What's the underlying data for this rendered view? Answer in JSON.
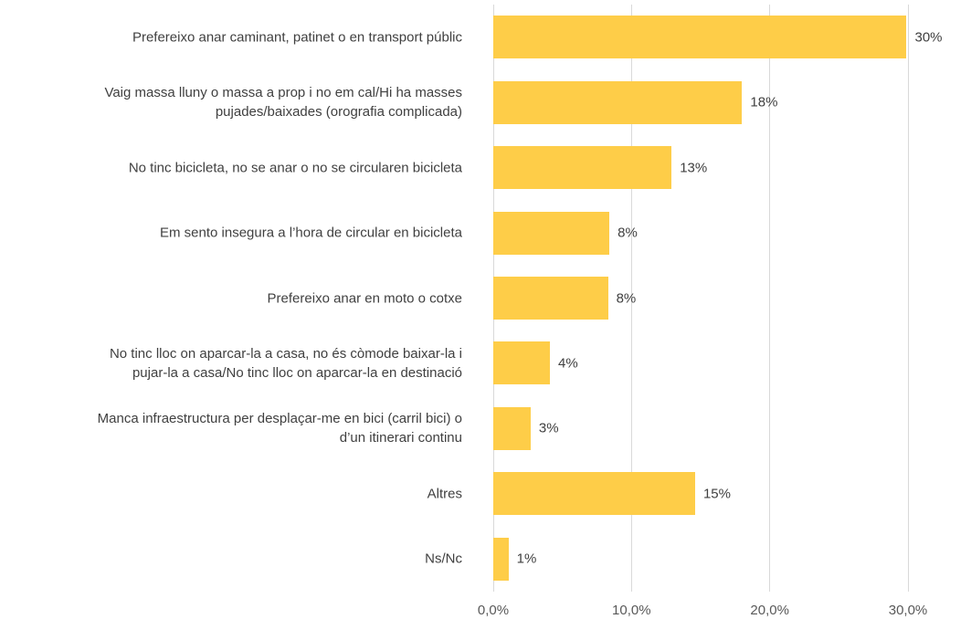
{
  "chart_data": {
    "type": "bar",
    "orientation": "horizontal",
    "categories": [
      "Prefereixo anar caminant, patinet o en transport públic",
      "Vaig massa lluny o massa a prop  i no em cal/Hi ha masses\npujades/baixades (orografia complicada)",
      "No tinc bicicleta, no se anar o no se circularen bicicleta",
      "Em sento insegura a l’hora de circular en bicicleta",
      "Prefereixo anar en moto o cotxe",
      "No tinc lloc on aparcar-la a casa, no és còmode baixar-la i\npujar-la a casa/No tinc lloc on aparcar-la en destinació",
      "Manca infraestructura per desplaçar-me en bici (carril bici) o\nd’un itinerari continu",
      "Altres",
      "Ns/Nc"
    ],
    "values": [
      29.9,
      18.0,
      12.9,
      8.4,
      8.3,
      4.1,
      2.7,
      14.6,
      1.1
    ],
    "value_labels": [
      "30%",
      "18%",
      "13%",
      "8%",
      "8%",
      "4%",
      "3%",
      "15%",
      "1%"
    ],
    "color": "#fecd48",
    "xlim": [
      0,
      30
    ],
    "xticks": [
      {
        "value": 0,
        "label": "0,0%"
      },
      {
        "value": 10,
        "label": "10,0%"
      },
      {
        "value": 20,
        "label": "20,0%"
      },
      {
        "value": 30,
        "label": "30,0%"
      }
    ],
    "grid": true
  }
}
